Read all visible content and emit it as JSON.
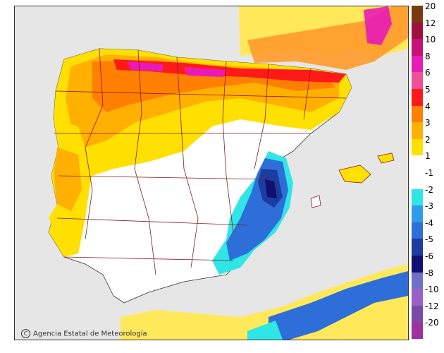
{
  "map": {
    "subject": "temperature anomaly",
    "colors": {
      "sea": "#e6e6e6",
      "border": "#8b1a1a"
    }
  },
  "legend": {
    "items": [
      {
        "label": "20",
        "color": "#7a3a10"
      },
      {
        "label": "12",
        "color": "#a0103c"
      },
      {
        "label": "10",
        "color": "#c81078"
      },
      {
        "label": "8",
        "color": "#e81ab8"
      },
      {
        "label": "6",
        "color": "#f0509a"
      },
      {
        "label": "5",
        "color": "#ff1a1a"
      },
      {
        "label": "4",
        "color": "#ff8000"
      },
      {
        "label": "3",
        "color": "#ffb000"
      },
      {
        "label": "2",
        "color": "#ffe000"
      },
      {
        "label": "1",
        "color": "#ffffff"
      },
      {
        "label": "-1",
        "color": "#ffffff"
      },
      {
        "label": "-2",
        "color": "#2ee6e6"
      },
      {
        "label": "-3",
        "color": "#2e9bef"
      },
      {
        "label": "-4",
        "color": "#2e6ed8"
      },
      {
        "label": "-5",
        "color": "#1d3ca0"
      },
      {
        "label": "-6",
        "color": "#101070"
      },
      {
        "label": "-8",
        "color": "#7070c8"
      },
      {
        "label": "-10",
        "color": "#9a60c8"
      },
      {
        "label": "-12",
        "color": "#7a4aa8"
      },
      {
        "label": "-20",
        "color": "#a030a0"
      }
    ]
  },
  "credit": {
    "text": "Agencia Estatal de Meteorología"
  }
}
